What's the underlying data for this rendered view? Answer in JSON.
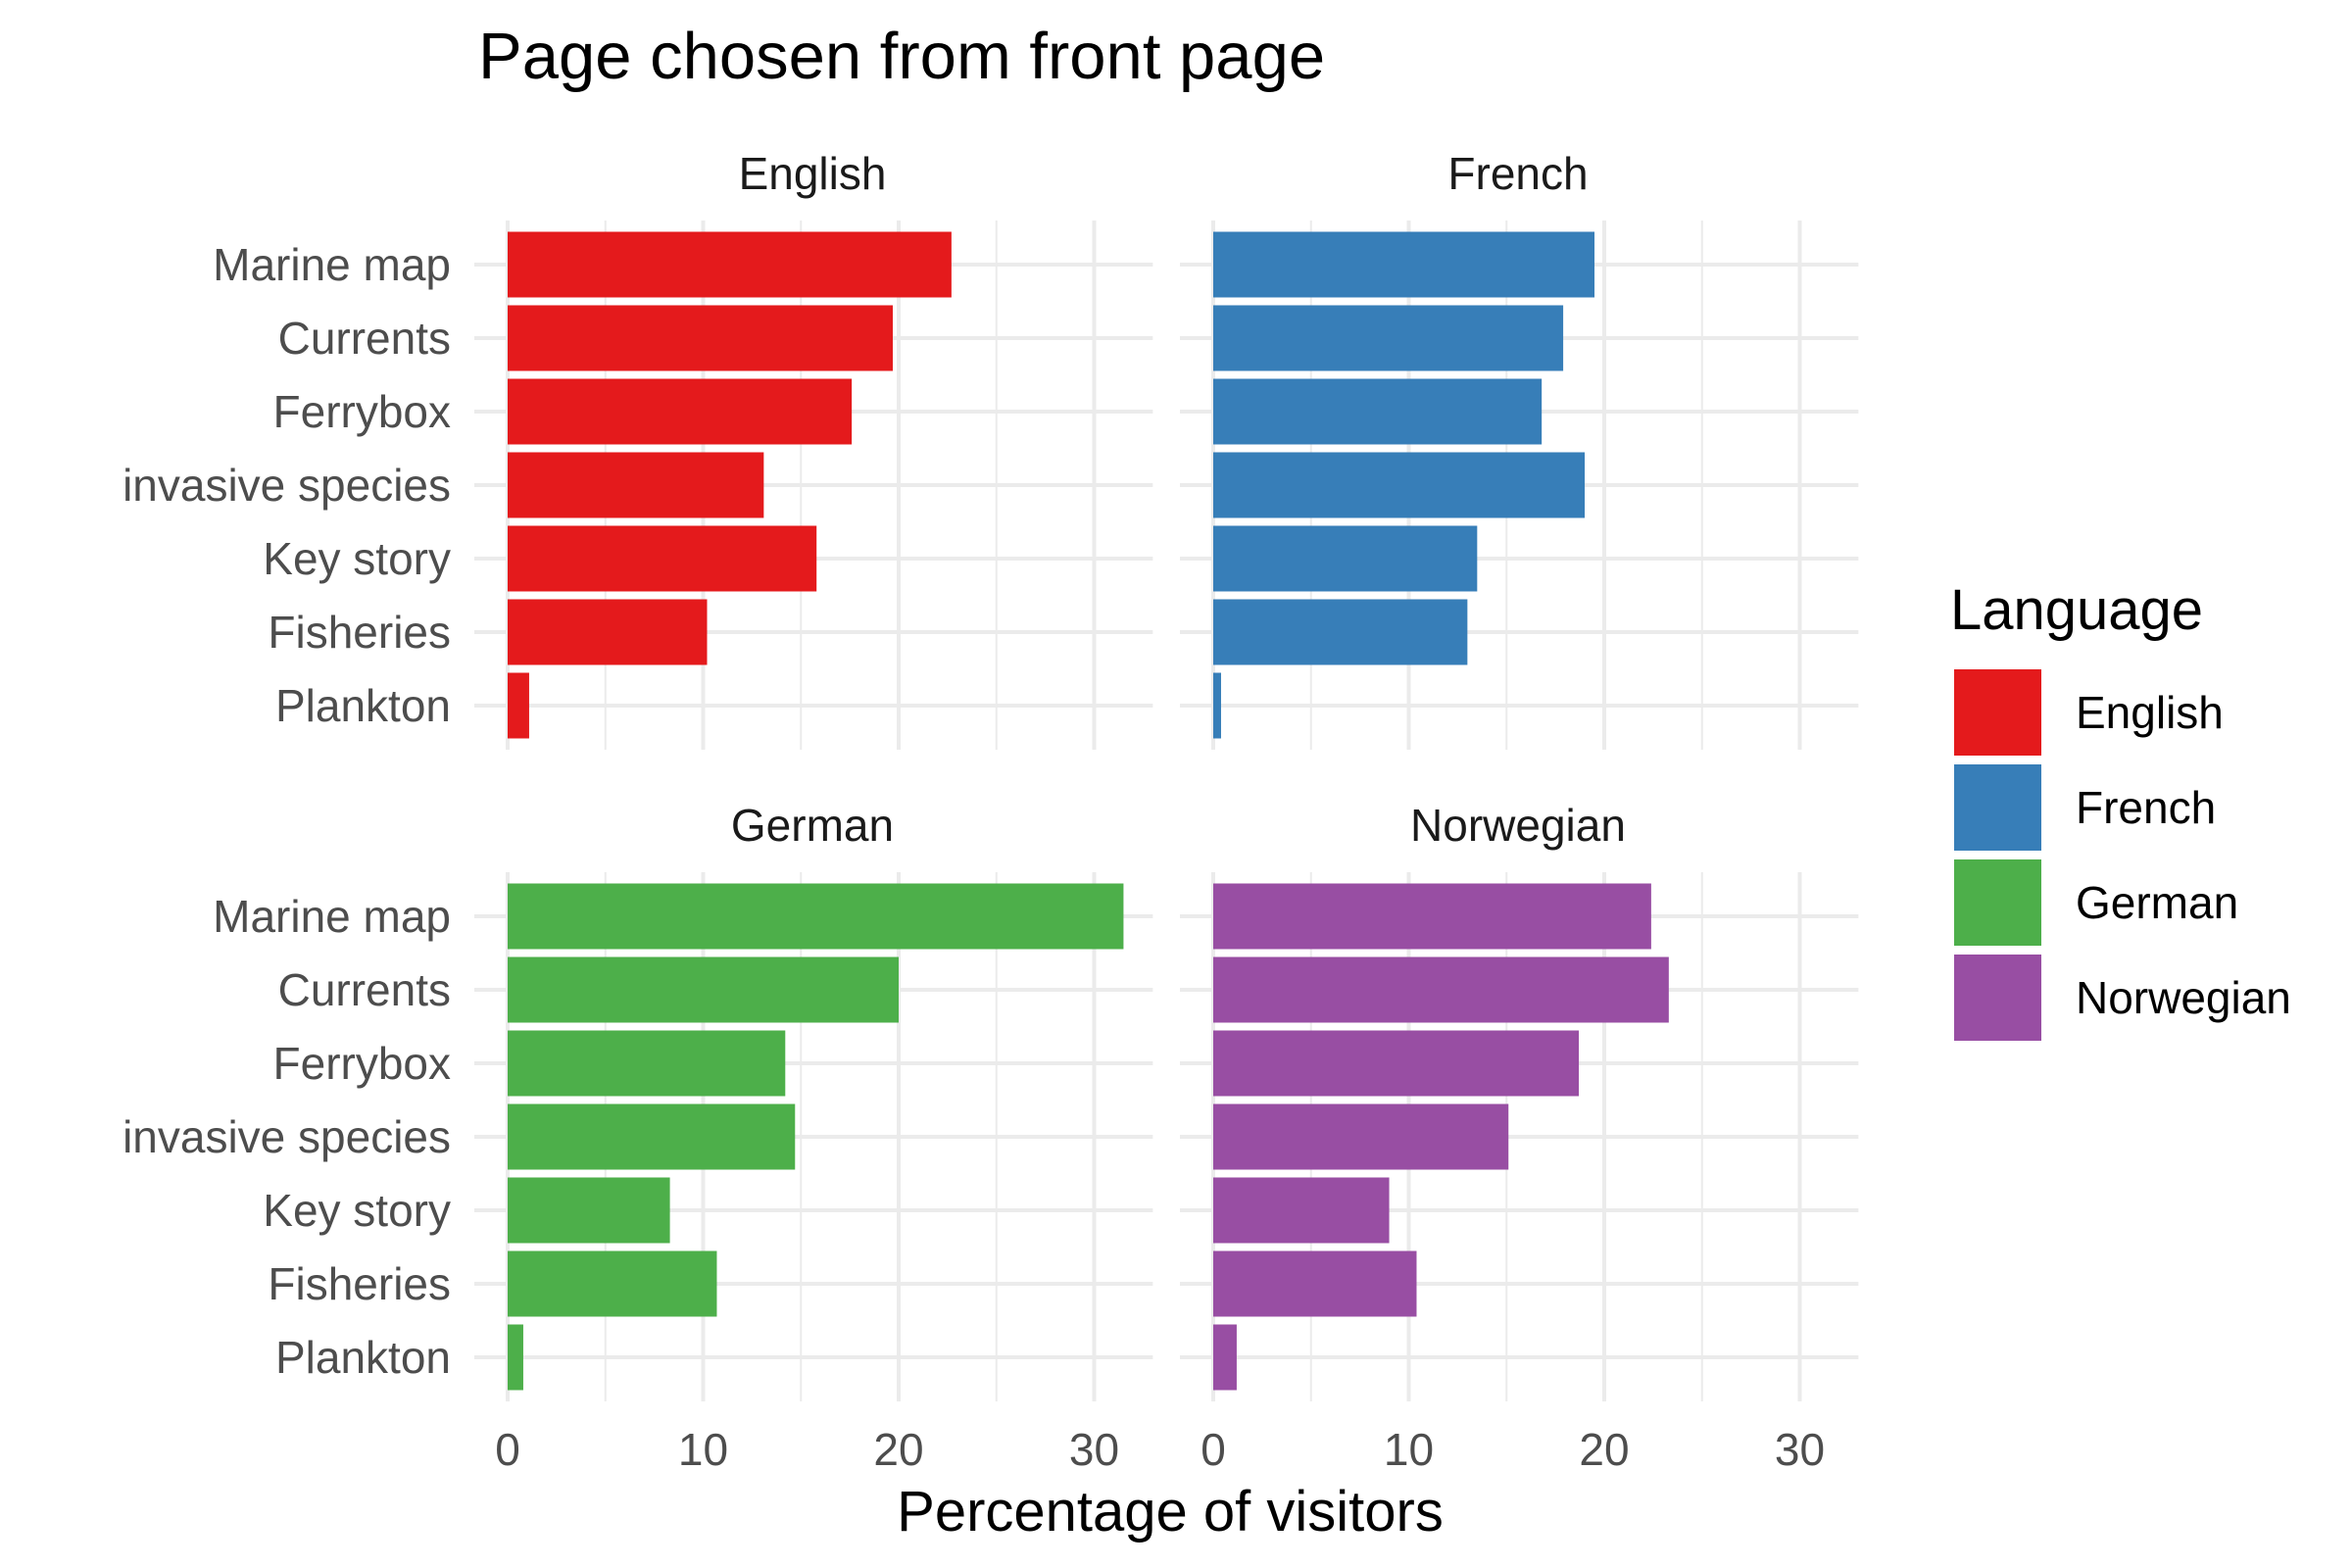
{
  "chart_data": {
    "type": "bar",
    "orientation": "horizontal",
    "title": "Page chosen from front page",
    "xlabel": "Percentage of visitors",
    "ylabel": "",
    "xlim": [
      0,
      33
    ],
    "xticks": [
      "0",
      "10",
      "20",
      "30"
    ],
    "grid": true,
    "legend_title": "Language",
    "legend_position": "right",
    "categories": [
      "Marine map",
      "Currents",
      "Ferrybox",
      "invasive species",
      "Key story",
      "Fisheries",
      "Plankton"
    ],
    "series": [
      {
        "name": "English",
        "color": "#E41A1C",
        "values": [
          22.7,
          19.7,
          17.6,
          13.1,
          15.8,
          10.2,
          1.1
        ]
      },
      {
        "name": "French",
        "color": "#377EB8",
        "values": [
          19.5,
          17.9,
          16.8,
          19.0,
          13.5,
          13.0,
          0.4
        ]
      },
      {
        "name": "German",
        "color": "#4DAF4A",
        "values": [
          31.5,
          20.0,
          14.2,
          14.7,
          8.3,
          10.7,
          0.8
        ]
      },
      {
        "name": "Norwegian",
        "color": "#984EA3",
        "values": [
          22.4,
          23.3,
          18.7,
          15.1,
          9.0,
          10.4,
          1.2
        ]
      }
    ]
  }
}
